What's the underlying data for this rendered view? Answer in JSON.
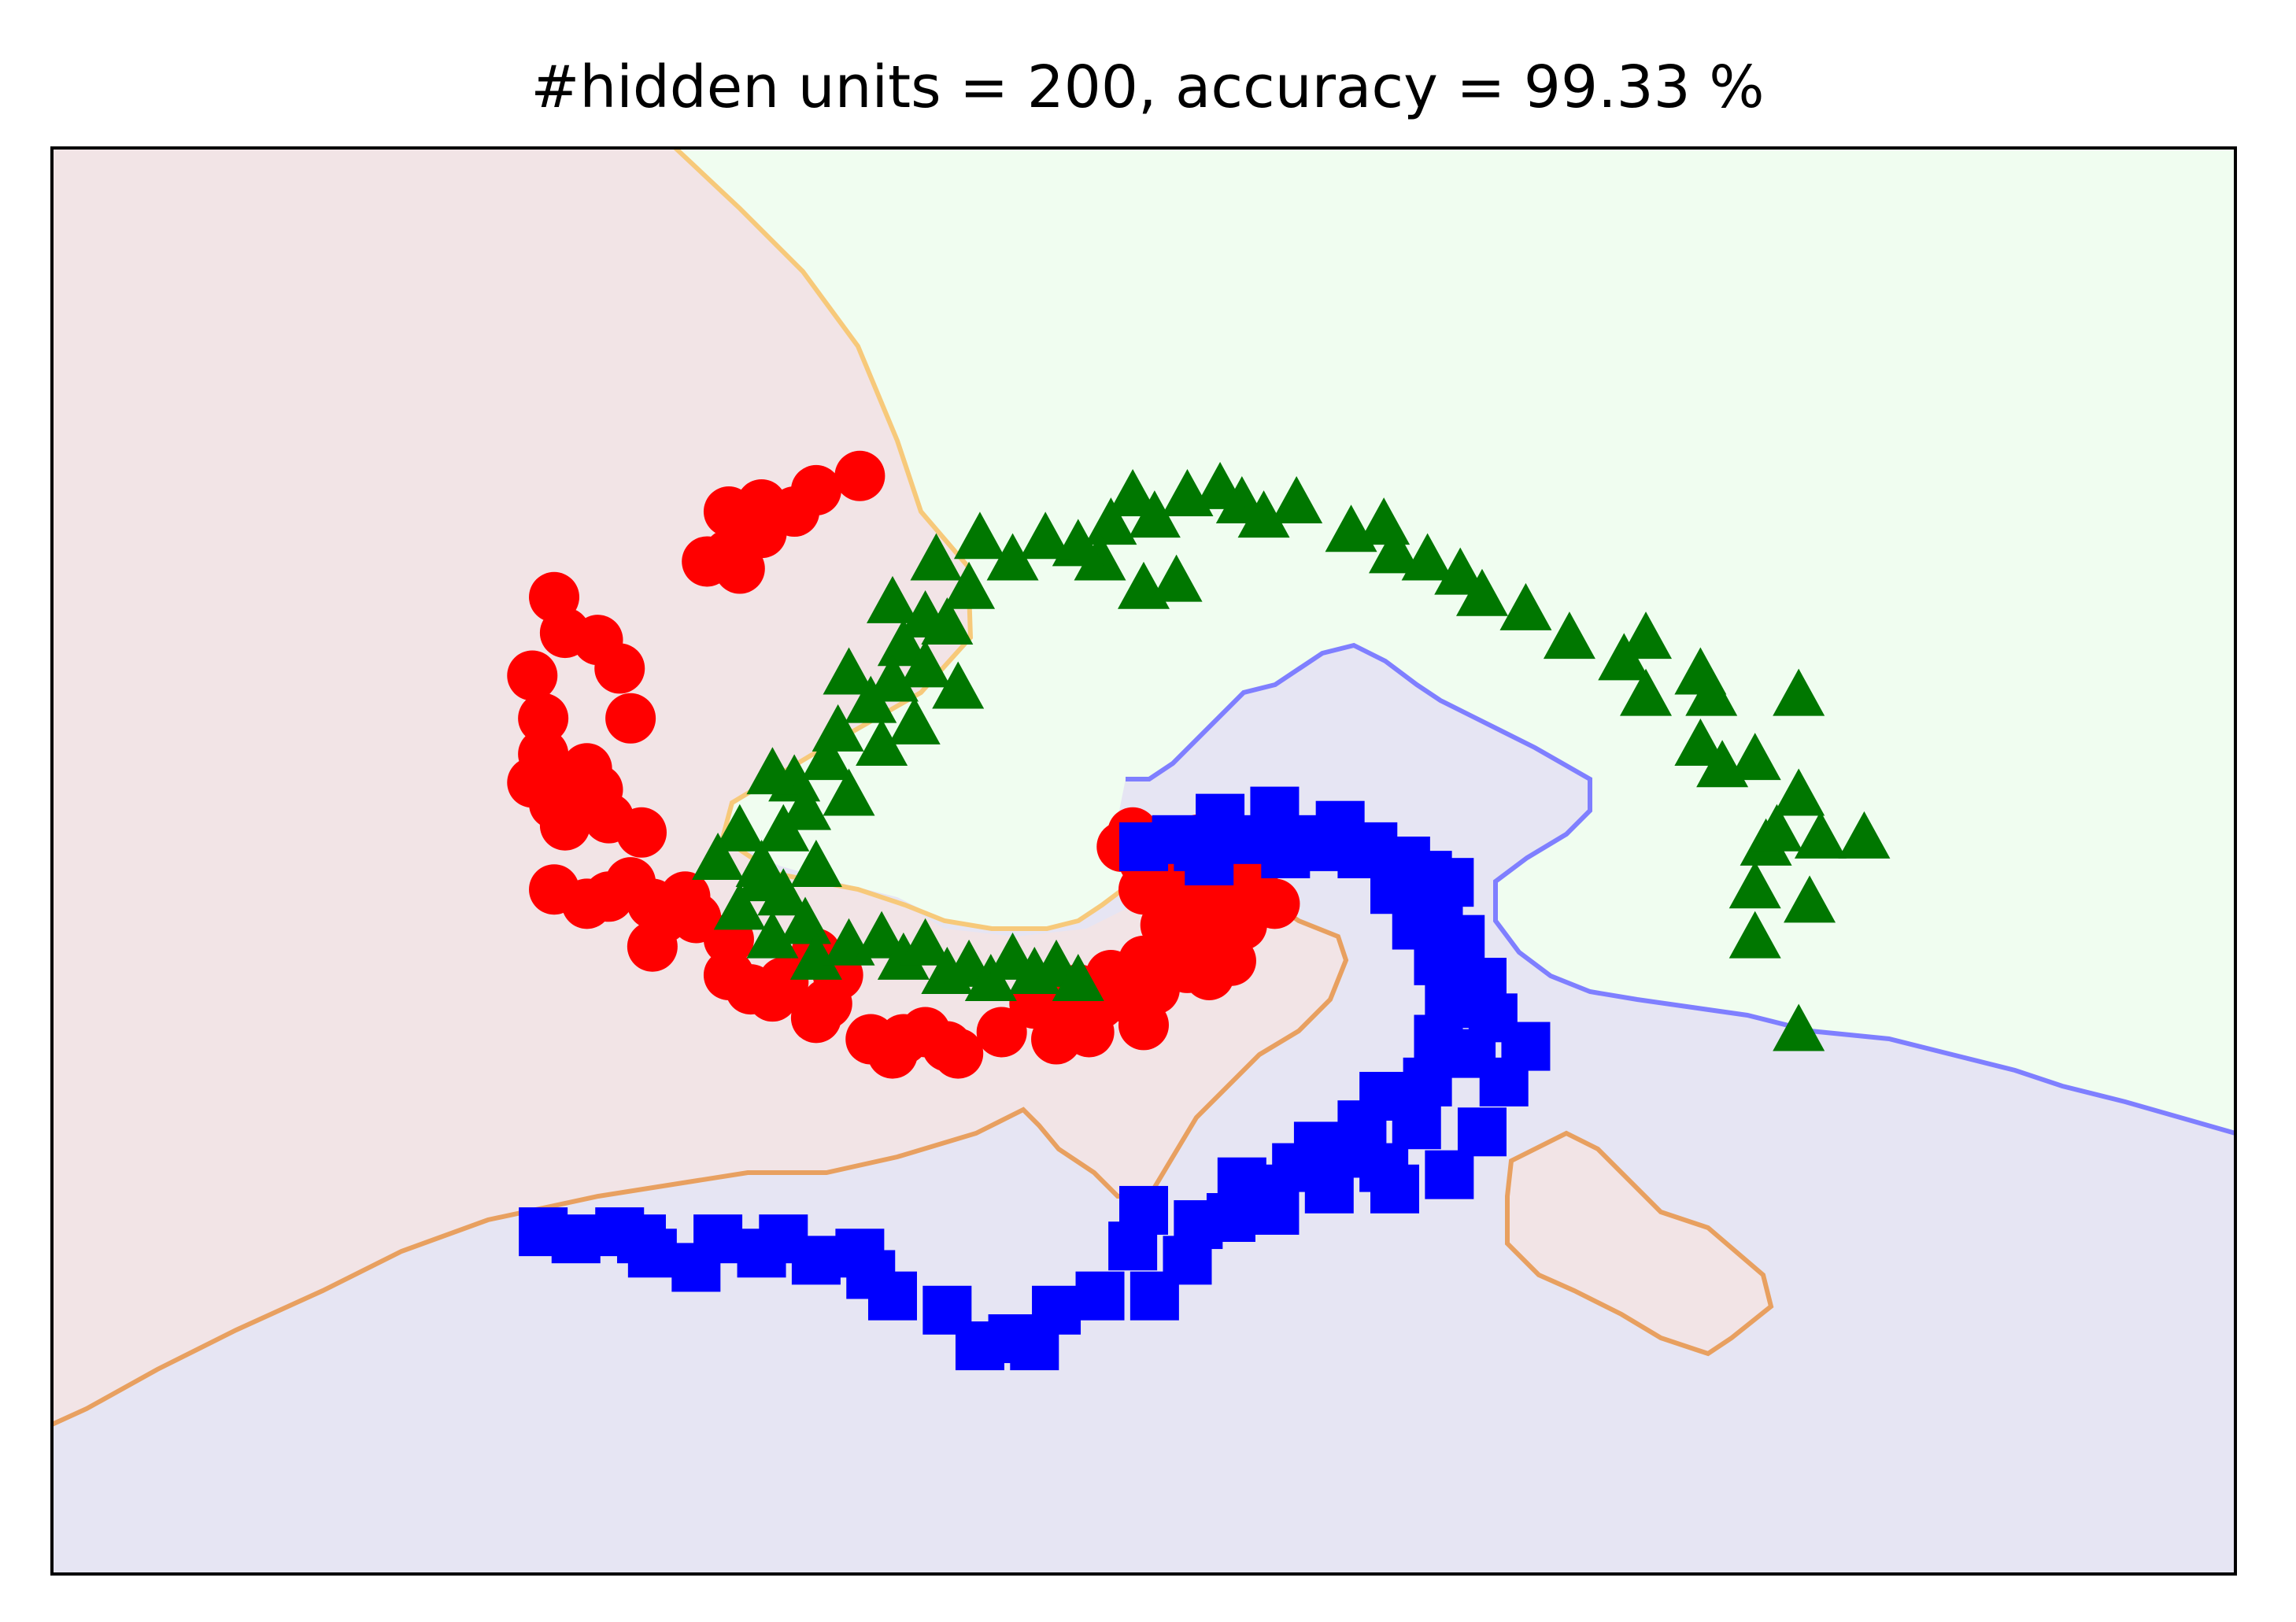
{
  "chart_data": {
    "type": "scatter",
    "title": "#hidden units = 200, accuracy = 99.33 %",
    "xlabel": "",
    "ylabel": "",
    "xlim": [
      -1.0,
      1.0
    ],
    "ylim": [
      -1.0,
      1.0
    ],
    "grid": false,
    "axis_ticks": false,
    "legend": "none",
    "background_regions": [
      {
        "class": "red",
        "color": "#f2e4e6"
      },
      {
        "class": "green",
        "color": "#f0fdf0"
      },
      {
        "class": "blue",
        "color": "#e6e5f3"
      }
    ],
    "series": [
      {
        "marker": "circle",
        "color": "#ff0000",
        "points": [
          [
            -0.26,
            0.54
          ],
          [
            -0.3,
            0.52
          ],
          [
            -0.38,
            0.49
          ],
          [
            -0.35,
            0.5
          ],
          [
            -0.32,
            0.49
          ],
          [
            -0.35,
            0.46
          ],
          [
            -0.4,
            0.42
          ],
          [
            -0.37,
            0.41
          ],
          [
            -0.38,
            0.43
          ],
          [
            -0.54,
            0.37
          ],
          [
            -0.53,
            0.32
          ],
          [
            -0.5,
            0.31
          ],
          [
            -0.48,
            0.27
          ],
          [
            -0.56,
            0.26
          ],
          [
            -0.47,
            0.2
          ],
          [
            -0.55,
            0.2
          ],
          [
            -0.55,
            0.15
          ],
          [
            -0.56,
            0.11
          ],
          [
            -0.54,
            0.08
          ],
          [
            -0.52,
            0.12
          ],
          [
            -0.5,
            0.1
          ],
          [
            -0.53,
            0.05
          ],
          [
            -0.51,
            0.13
          ],
          [
            -0.49,
            0.06
          ],
          [
            -0.46,
            0.04
          ],
          [
            -0.54,
            -0.04
          ],
          [
            -0.51,
            -0.06
          ],
          [
            -0.49,
            -0.05
          ],
          [
            -0.47,
            -0.03
          ],
          [
            -0.45,
            -0.06
          ],
          [
            -0.44,
            -0.08
          ],
          [
            -0.42,
            -0.05
          ],
          [
            -0.41,
            -0.08
          ],
          [
            -0.45,
            -0.12
          ],
          [
            -0.38,
            -0.11
          ],
          [
            -0.38,
            -0.16
          ],
          [
            -0.36,
            -0.18
          ],
          [
            -0.33,
            -0.17
          ],
          [
            -0.34,
            -0.19
          ],
          [
            -0.3,
            -0.13
          ],
          [
            -0.29,
            -0.2
          ],
          [
            -0.28,
            -0.16
          ],
          [
            -0.3,
            -0.22
          ],
          [
            -0.25,
            -0.25
          ],
          [
            -0.23,
            -0.27
          ],
          [
            -0.22,
            -0.25
          ],
          [
            -0.18,
            -0.26
          ],
          [
            -0.2,
            -0.24
          ],
          [
            -0.17,
            -0.27
          ],
          [
            -0.13,
            -0.24
          ],
          [
            -0.1,
            -0.2
          ],
          [
            -0.08,
            -0.22
          ],
          [
            -0.06,
            -0.18
          ],
          [
            -0.04,
            -0.2
          ],
          [
            -0.05,
            -0.24
          ],
          [
            -0.02,
            -0.19
          ],
          [
            0.0,
            -0.23
          ],
          [
            0.01,
            -0.18
          ],
          [
            0.02,
            -0.12
          ],
          [
            0.04,
            -0.15
          ],
          [
            0.06,
            -0.16
          ],
          [
            0.03,
            -0.1
          ],
          [
            0.05,
            -0.08
          ],
          [
            0.07,
            -0.11
          ],
          [
            0.09,
            -0.09
          ],
          [
            0.06,
            -0.06
          ],
          [
            0.08,
            -0.03
          ],
          [
            0.04,
            -0.04
          ],
          [
            0.02,
            -0.06
          ],
          [
            0.0,
            -0.04
          ],
          [
            0.03,
            -0.02
          ],
          [
            0.06,
            -0.02
          ],
          [
            0.0,
            0.0
          ],
          [
            -0.02,
            0.02
          ],
          [
            -0.01,
            0.04
          ],
          [
            0.02,
            0.01
          ],
          [
            0.04,
            0.01
          ],
          [
            0.05,
            0.03
          ],
          [
            0.07,
            0.0
          ],
          [
            0.09,
            -0.05
          ],
          [
            0.1,
            -0.03
          ],
          [
            0.12,
            -0.06
          ],
          [
            0.06,
            -0.13
          ],
          [
            0.08,
            -0.14
          ],
          [
            0.0,
            -0.14
          ],
          [
            0.02,
            -0.09
          ],
          [
            -0.03,
            -0.16
          ],
          [
            -0.08,
            -0.25
          ]
        ]
      },
      {
        "marker": "triangle",
        "color": "#007700",
        "points": [
          [
            0.6,
            -0.24
          ],
          [
            0.56,
            -0.11
          ],
          [
            0.61,
            -0.06
          ],
          [
            0.56,
            -0.04
          ],
          [
            0.66,
            0.03
          ],
          [
            0.62,
            0.03
          ],
          [
            0.57,
            0.02
          ],
          [
            0.58,
            0.04
          ],
          [
            0.6,
            0.09
          ],
          [
            0.53,
            0.13
          ],
          [
            0.56,
            0.14
          ],
          [
            0.51,
            0.16
          ],
          [
            0.52,
            0.23
          ],
          [
            0.6,
            0.23
          ],
          [
            0.51,
            0.26
          ],
          [
            0.46,
            0.23
          ],
          [
            0.44,
            0.28
          ],
          [
            0.39,
            0.31
          ],
          [
            0.46,
            0.31
          ],
          [
            0.35,
            0.35
          ],
          [
            0.31,
            0.37
          ],
          [
            0.26,
            0.42
          ],
          [
            0.29,
            0.4
          ],
          [
            0.23,
            0.43
          ],
          [
            0.22,
            0.47
          ],
          [
            0.19,
            0.46
          ],
          [
            0.14,
            0.5
          ],
          [
            0.09,
            0.5
          ],
          [
            0.11,
            0.48
          ],
          [
            0.07,
            0.52
          ],
          [
            0.04,
            0.51
          ],
          [
            0.01,
            0.48
          ],
          [
            -0.01,
            0.51
          ],
          [
            -0.03,
            0.47
          ],
          [
            -0.04,
            0.42
          ],
          [
            0.0,
            0.38
          ],
          [
            0.03,
            0.39
          ],
          [
            -0.06,
            0.44
          ],
          [
            -0.09,
            0.45
          ],
          [
            -0.12,
            0.42
          ],
          [
            -0.15,
            0.45
          ],
          [
            -0.19,
            0.42
          ],
          [
            -0.16,
            0.38
          ],
          [
            -0.2,
            0.34
          ],
          [
            -0.23,
            0.36
          ],
          [
            -0.22,
            0.3
          ],
          [
            -0.18,
            0.33
          ],
          [
            -0.2,
            0.27
          ],
          [
            -0.17,
            0.24
          ],
          [
            -0.23,
            0.25
          ],
          [
            -0.27,
            0.26
          ],
          [
            -0.25,
            0.22
          ],
          [
            -0.28,
            0.18
          ],
          [
            -0.24,
            0.16
          ],
          [
            -0.21,
            0.19
          ],
          [
            -0.29,
            0.14
          ],
          [
            -0.32,
            0.11
          ],
          [
            -0.34,
            0.12
          ],
          [
            -0.27,
            0.09
          ],
          [
            -0.31,
            0.07
          ],
          [
            -0.33,
            0.04
          ],
          [
            -0.37,
            0.04
          ],
          [
            -0.39,
            0.0
          ],
          [
            -0.35,
            -0.01
          ],
          [
            -0.3,
            -0.01
          ],
          [
            -0.33,
            -0.05
          ],
          [
            -0.35,
            -0.03
          ],
          [
            -0.37,
            -0.07
          ],
          [
            -0.34,
            -0.11
          ],
          [
            -0.31,
            -0.09
          ],
          [
            -0.3,
            -0.14
          ],
          [
            -0.27,
            -0.12
          ],
          [
            -0.24,
            -0.11
          ],
          [
            -0.22,
            -0.14
          ],
          [
            -0.2,
            -0.12
          ],
          [
            -0.18,
            -0.16
          ],
          [
            -0.16,
            -0.15
          ],
          [
            -0.14,
            -0.17
          ],
          [
            -0.12,
            -0.14
          ],
          [
            -0.1,
            -0.16
          ],
          [
            -0.08,
            -0.15
          ],
          [
            -0.06,
            -0.17
          ]
        ]
      },
      {
        "marker": "square",
        "color": "#0000ff",
        "points": [
          [
            0.0,
            0.02
          ],
          [
            0.03,
            0.03
          ],
          [
            0.05,
            0.02
          ],
          [
            0.07,
            0.06
          ],
          [
            0.1,
            0.03
          ],
          [
            0.13,
            0.01
          ],
          [
            0.15,
            0.03
          ],
          [
            0.17,
            0.02
          ],
          [
            0.2,
            0.01
          ],
          [
            0.24,
            0.0
          ],
          [
            0.26,
            -0.02
          ],
          [
            0.23,
            -0.04
          ],
          [
            0.27,
            -0.06
          ],
          [
            0.25,
            -0.09
          ],
          [
            0.29,
            -0.11
          ],
          [
            0.27,
            -0.14
          ],
          [
            0.31,
            -0.17
          ],
          [
            0.28,
            -0.2
          ],
          [
            0.32,
            -0.22
          ],
          [
            0.27,
            -0.25
          ],
          [
            0.3,
            -0.27
          ],
          [
            0.35,
            -0.26
          ],
          [
            0.33,
            -0.31
          ],
          [
            0.26,
            -0.31
          ],
          [
            0.22,
            -0.33
          ],
          [
            0.25,
            -0.37
          ],
          [
            0.31,
            -0.38
          ],
          [
            0.19,
            -0.41
          ],
          [
            0.22,
            -0.43
          ],
          [
            0.23,
            -0.46
          ],
          [
            0.17,
            -0.46
          ],
          [
            0.14,
            -0.43
          ],
          [
            0.11,
            -0.46
          ],
          [
            0.09,
            -0.45
          ],
          [
            0.12,
            -0.49
          ],
          [
            0.08,
            -0.5
          ],
          [
            0.05,
            -0.51
          ],
          [
            0.0,
            -0.49
          ],
          [
            -0.01,
            -0.54
          ],
          [
            0.04,
            -0.56
          ],
          [
            0.01,
            -0.61
          ],
          [
            -0.04,
            -0.61
          ],
          [
            -0.08,
            -0.63
          ],
          [
            -0.1,
            -0.68
          ],
          [
            -0.12,
            -0.67
          ],
          [
            -0.15,
            -0.68
          ],
          [
            -0.18,
            -0.63
          ],
          [
            -0.23,
            -0.61
          ],
          [
            -0.25,
            -0.58
          ],
          [
            -0.26,
            -0.55
          ],
          [
            -0.3,
            -0.56
          ],
          [
            -0.33,
            -0.53
          ],
          [
            -0.35,
            -0.55
          ],
          [
            -0.39,
            -0.53
          ],
          [
            -0.45,
            -0.55
          ],
          [
            -0.41,
            -0.57
          ],
          [
            -0.46,
            -0.53
          ],
          [
            -0.48,
            -0.52
          ],
          [
            -0.52,
            -0.53
          ],
          [
            -0.55,
            -0.52
          ],
          [
            0.06,
            0.0
          ],
          [
            0.12,
            0.07
          ],
          [
            0.18,
            0.05
          ],
          [
            0.21,
            0.02
          ],
          [
            0.28,
            -0.03
          ],
          [
            0.2,
            -0.37
          ],
          [
            0.16,
            -0.4
          ],
          [
            0.28,
            -0.44
          ]
        ]
      }
    ]
  }
}
